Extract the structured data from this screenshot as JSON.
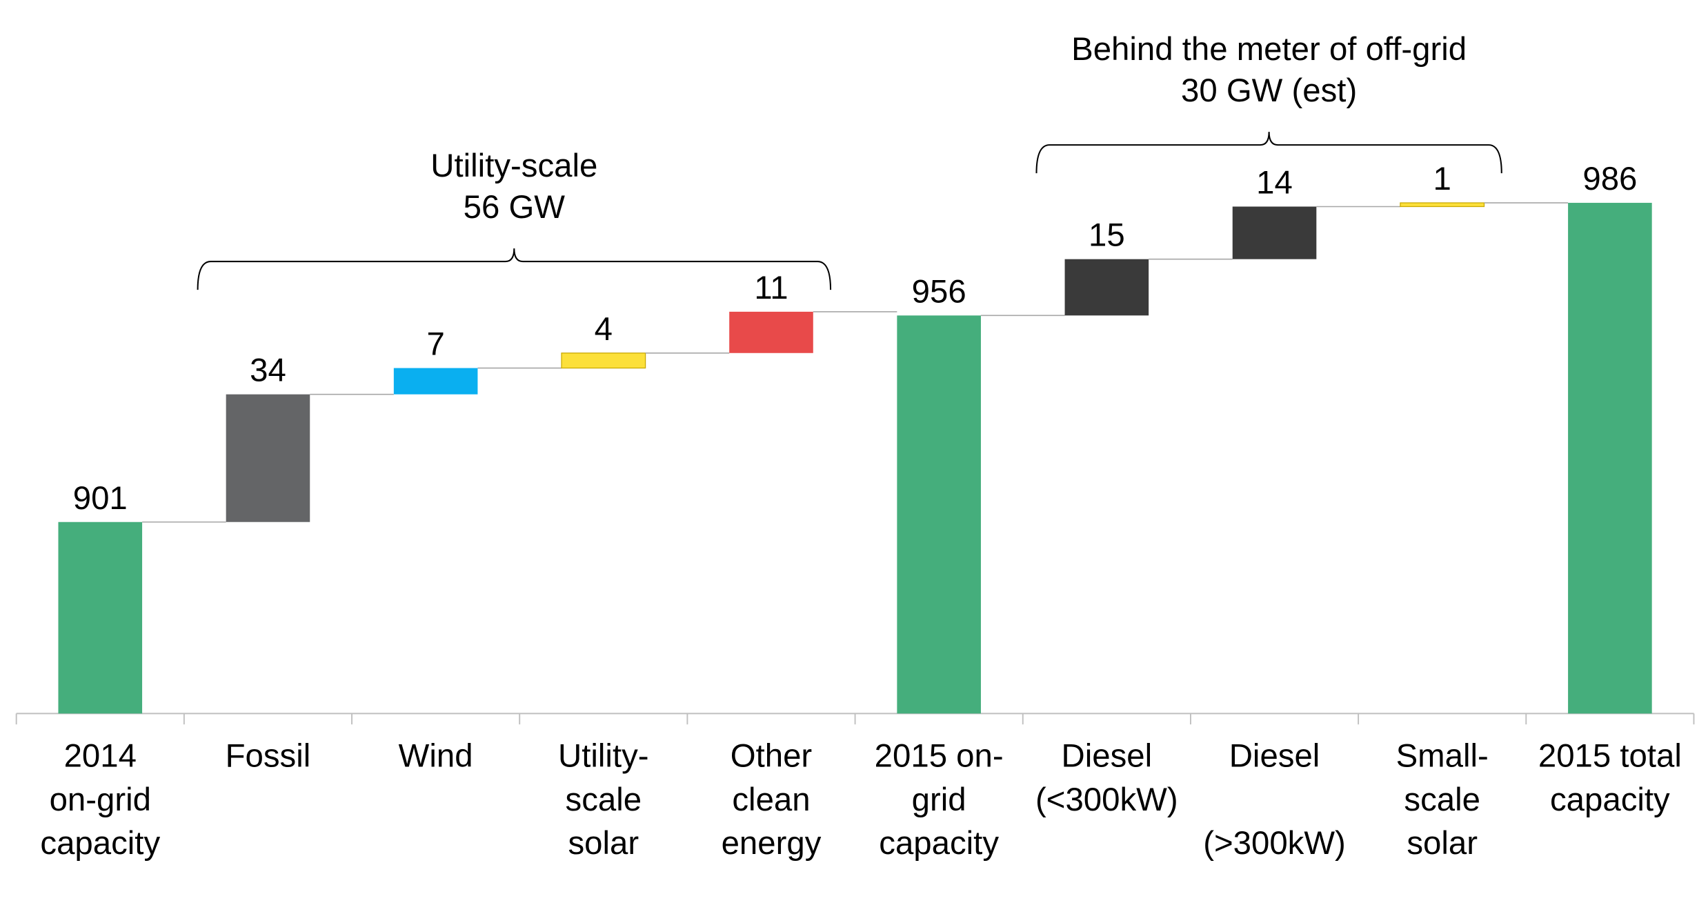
{
  "chart_data": {
    "type": "waterfall",
    "categories": [
      "2014\non-grid\ncapacity",
      "Fossil",
      "Wind",
      "Utility-\nscale\nsolar",
      "Other\nclean\nenergy",
      "2015 on-\ngrid\ncapacity",
      "Diesel\n(<300kW)",
      "Diesel\n\n(>300kW)",
      "Small-\nscale\nsolar",
      "2015 total\ncapacity"
    ],
    "values": [
      901,
      34,
      7,
      4,
      11,
      956,
      15,
      14,
      1,
      986
    ],
    "kinds": [
      "total",
      "delta",
      "delta",
      "delta",
      "delta",
      "total",
      "delta",
      "delta",
      "delta",
      "total"
    ],
    "colors": [
      "#45ae7c",
      "#646567",
      "#0aaff0",
      "#fce03a",
      "#e84a4a",
      "#45ae7c",
      "#3a3a3a",
      "#3a3a3a",
      "#fce03a",
      "#45ae7c"
    ],
    "ylim": [
      850,
      1040
    ],
    "annotations": [
      {
        "lines": [
          "Utility-scale",
          "56 GW"
        ]
      },
      {
        "lines": [
          "Behind the meter of off-grid",
          "30 GW (est)"
        ]
      }
    ]
  }
}
